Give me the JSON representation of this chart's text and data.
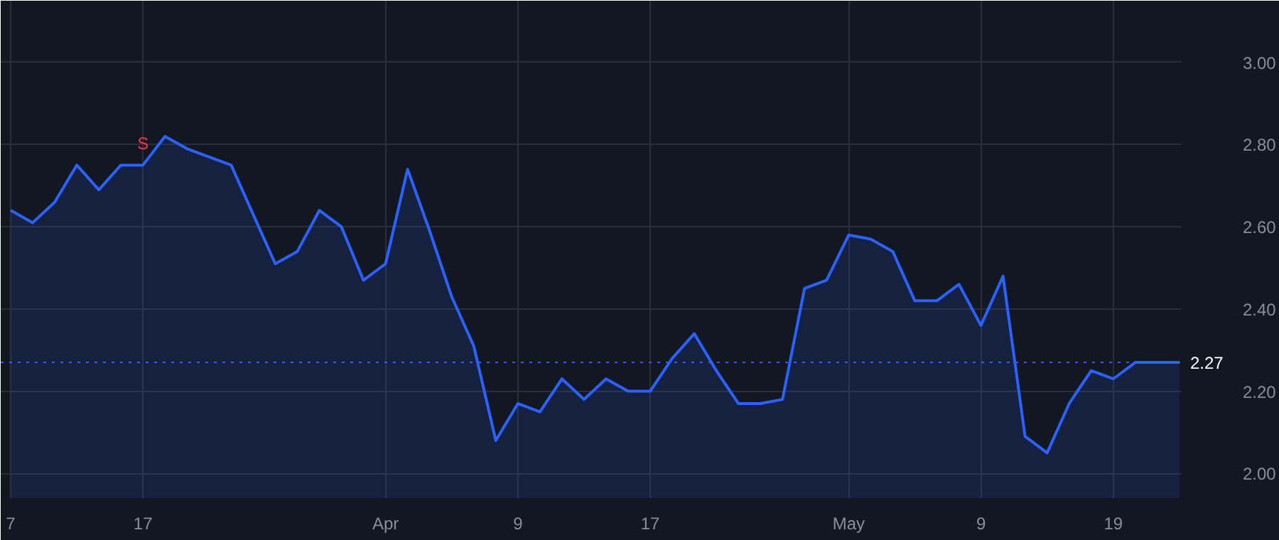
{
  "chart_data": {
    "type": "area",
    "categories": [
      "7",
      null,
      null,
      null,
      null,
      null,
      "17",
      null,
      null,
      null,
      null,
      null,
      null,
      null,
      null,
      null,
      null,
      "Apr",
      null,
      null,
      null,
      null,
      null,
      "9",
      null,
      null,
      null,
      null,
      null,
      "17",
      null,
      null,
      null,
      null,
      null,
      null,
      null,
      null,
      "May",
      null,
      null,
      null,
      null,
      null,
      "9",
      null,
      null,
      null,
      null,
      null,
      "19",
      null,
      null,
      null
    ],
    "series": [
      {
        "color": "#2962ff",
        "values": [
          2.64,
          2.61,
          2.66,
          2.75,
          2.69,
          2.75,
          2.75,
          2.82,
          2.79,
          2.77,
          2.75,
          2.63,
          2.51,
          2.54,
          2.64,
          2.6,
          2.47,
          2.51,
          2.74,
          2.59,
          2.43,
          2.31,
          2.08,
          2.17,
          2.15,
          2.23,
          2.18,
          2.23,
          2.2,
          2.2,
          2.28,
          2.34,
          2.25,
          2.17,
          2.17,
          2.18,
          2.45,
          2.47,
          2.58,
          2.57,
          2.54,
          2.42,
          2.42,
          2.46,
          2.36,
          2.48,
          2.09,
          2.05,
          2.17,
          2.25,
          2.23,
          2.27,
          2.27,
          2.27
        ]
      }
    ],
    "ylim": [
      1.94,
      3.15
    ],
    "yticks": [
      {
        "value": 2.0,
        "label": "2.00"
      },
      {
        "value": 2.2,
        "label": "2.20"
      },
      {
        "value": 2.4,
        "label": "2.40"
      },
      {
        "value": 2.6,
        "label": "2.60"
      },
      {
        "value": 2.8,
        "label": "2.80"
      },
      {
        "value": 3.0,
        "label": "3.00"
      }
    ],
    "ref_lines": [
      {
        "axis": "y",
        "value": 2.27,
        "label": "2.27",
        "color": "#2962ff",
        "line_style": "dotted"
      }
    ],
    "annotations": [
      {
        "text": "S",
        "x": "17",
        "y": 2.75
      }
    ],
    "grid": true,
    "line_style": "solid"
  }
}
